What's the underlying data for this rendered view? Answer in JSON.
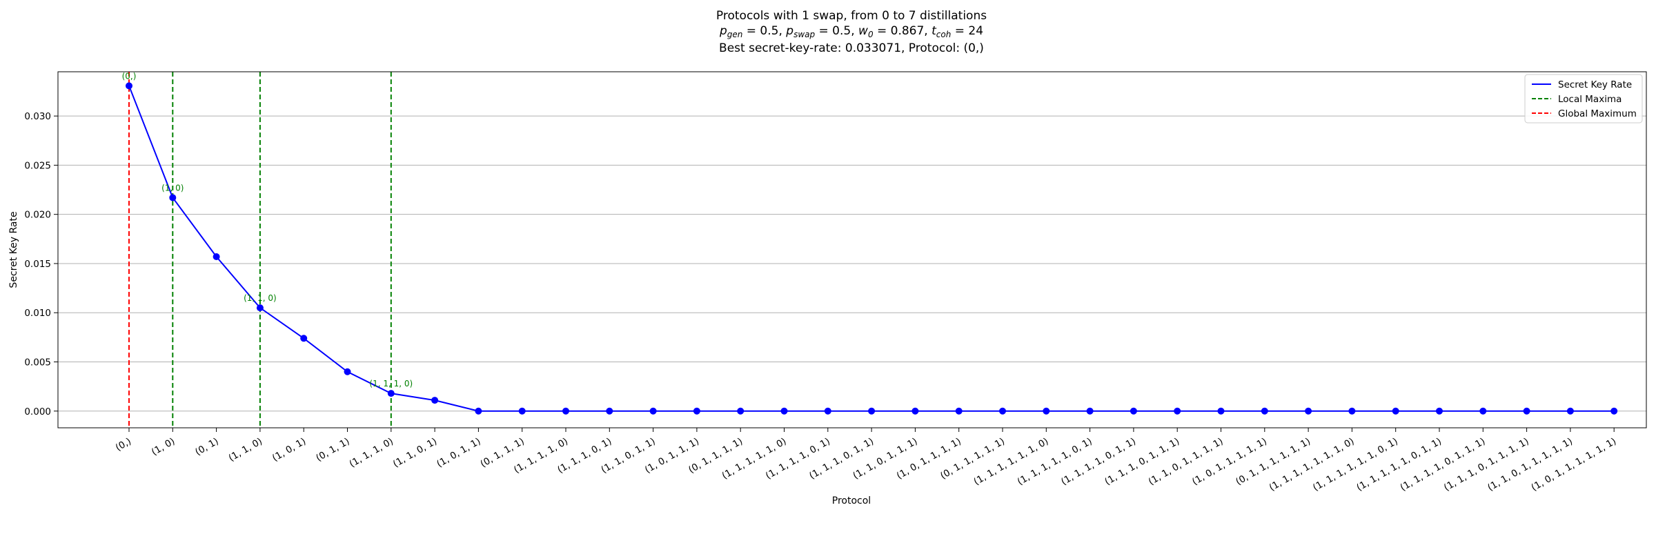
{
  "chart_data": {
    "type": "line",
    "title_lines": [
      "Protocols with 1 swap, from 0 to 7 distillations",
      "p_gen = 0.5, p_swap = 0.5, w_0 = 0.867, t_coh = 24",
      "Best secret-key-rate: 0.033071, Protocol: (0,)"
    ],
    "params": [
      {
        "sym": "p",
        "sub": "gen",
        "val": "0.5"
      },
      {
        "sym": "p",
        "sub": "swap",
        "val": "0.5"
      },
      {
        "sym": "w",
        "sub": "0",
        "val": "0.867"
      },
      {
        "sym": "t",
        "sub": "coh",
        "val": "24"
      }
    ],
    "xlabel": "Protocol",
    "ylabel": "Secret Key Rate",
    "ylim": [
      -0.0017,
      0.0345
    ],
    "yticks": [
      0.0,
      0.005,
      0.01,
      0.015,
      0.02,
      0.025,
      0.03
    ],
    "ytick_labels": [
      "0.000",
      "0.005",
      "0.010",
      "0.015",
      "0.020",
      "0.025",
      "0.030"
    ],
    "grid": "horizontal",
    "legend_position": "top-right",
    "categories": [
      "(0,)",
      "(1, 0)",
      "(0, 1)",
      "(1, 1, 0)",
      "(1, 0, 1)",
      "(0, 1, 1)",
      "(1, 1, 1, 0)",
      "(1, 1, 0, 1)",
      "(1, 0, 1, 1)",
      "(0, 1, 1, 1)",
      "(1, 1, 1, 1, 0)",
      "(1, 1, 1, 0, 1)",
      "(1, 1, 0, 1, 1)",
      "(1, 0, 1, 1, 1)",
      "(0, 1, 1, 1, 1)",
      "(1, 1, 1, 1, 1, 0)",
      "(1, 1, 1, 1, 0, 1)",
      "(1, 1, 1, 0, 1, 1)",
      "(1, 1, 0, 1, 1, 1)",
      "(1, 0, 1, 1, 1, 1)",
      "(0, 1, 1, 1, 1, 1)",
      "(1, 1, 1, 1, 1, 1, 0)",
      "(1, 1, 1, 1, 1, 0, 1)",
      "(1, 1, 1, 1, 0, 1, 1)",
      "(1, 1, 1, 0, 1, 1, 1)",
      "(1, 1, 0, 1, 1, 1, 1)",
      "(1, 0, 1, 1, 1, 1, 1)",
      "(0, 1, 1, 1, 1, 1, 1)",
      "(1, 1, 1, 1, 1, 1, 1, 0)",
      "(1, 1, 1, 1, 1, 1, 0, 1)",
      "(1, 1, 1, 1, 1, 0, 1, 1)",
      "(1, 1, 1, 1, 0, 1, 1, 1)",
      "(1, 1, 1, 0, 1, 1, 1, 1)",
      "(1, 1, 0, 1, 1, 1, 1, 1)",
      "(1, 0, 1, 1, 1, 1, 1, 1)"
    ],
    "series": [
      {
        "name": "Secret Key Rate",
        "color": "#0000ff",
        "values": [
          0.033071,
          0.0217,
          0.0157,
          0.0105,
          0.0074,
          0.004,
          0.0018,
          0.0011,
          0.0,
          0.0,
          0.0,
          0.0,
          0.0,
          0.0,
          0.0,
          0.0,
          0.0,
          0.0,
          0.0,
          0.0,
          0.0,
          0.0,
          0.0,
          0.0,
          0.0,
          0.0,
          0.0,
          0.0,
          0.0,
          0.0,
          0.0,
          0.0,
          0.0,
          0.0,
          0.0
        ]
      }
    ],
    "local_maxima": [
      {
        "index": 1,
        "label": "(1, 0)"
      },
      {
        "index": 3,
        "label": "(1, 1, 0)"
      },
      {
        "index": 6,
        "label": "(1, 1, 1, 0)"
      }
    ],
    "global_maximum": {
      "index": 0,
      "label": "(0,)"
    },
    "legend": [
      {
        "label": "Secret Key Rate",
        "color": "#0000ff",
        "style": "solid"
      },
      {
        "label": "Local Maxima",
        "color": "#008000",
        "style": "dashed"
      },
      {
        "label": "Global Maximum",
        "color": "#ff0000",
        "style": "dashed"
      }
    ],
    "colors": {
      "line": "#0000ff",
      "local": "#008000",
      "global": "#ff0000",
      "grid": "#b0b0b0"
    }
  }
}
